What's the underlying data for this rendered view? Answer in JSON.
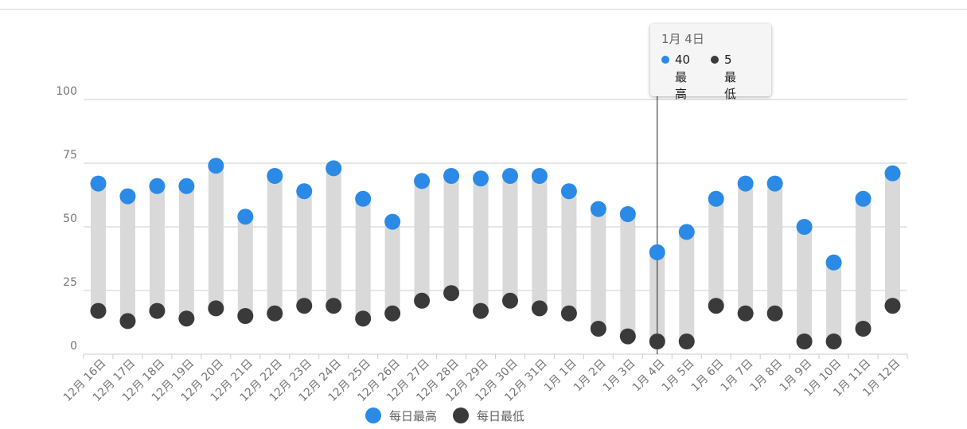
{
  "colors": {
    "high": "#2b8ae6",
    "low": "#3a3a3a",
    "range": "#d9d9d9",
    "grid": "#cccccc",
    "axis_text": "#757575"
  },
  "chart_data": {
    "type": "dumbbell",
    "categories": [
      "12月 16日",
      "12月 17日",
      "12月 18日",
      "12月 19日",
      "12月 20日",
      "12月 21日",
      "12月 22日",
      "12月 23日",
      "12月 24日",
      "12月 25日",
      "12月 26日",
      "12月 27日",
      "12月 28日",
      "12月 29日",
      "12月 30日",
      "12月 31日",
      "1月 1日",
      "1月 2日",
      "1月 3日",
      "1月 4日",
      "1月 5日",
      "1月 6日",
      "1月 7日",
      "1月 8日",
      "1月 9日",
      "1月 10日",
      "1月 11日",
      "1月 12日"
    ],
    "series": [
      {
        "name": "每日最高",
        "values": [
          67,
          62,
          66,
          66,
          74,
          54,
          70,
          64,
          73,
          61,
          52,
          68,
          70,
          69,
          70,
          70,
          64,
          57,
          55,
          40,
          48,
          61,
          67,
          67,
          50,
          36,
          61,
          71
        ]
      },
      {
        "name": "每日最低",
        "values": [
          17,
          13,
          17,
          14,
          18,
          15,
          16,
          19,
          19,
          14,
          16,
          21,
          24,
          17,
          21,
          18,
          16,
          10,
          7,
          5,
          5,
          19,
          16,
          16,
          5,
          5,
          10,
          19
        ]
      }
    ],
    "y_ticks": [
      0,
      25,
      50,
      75,
      100
    ],
    "ylim": [
      0,
      100
    ],
    "grid": true,
    "legend_position": "bottom"
  },
  "legend": {
    "high_label": "每日最高",
    "low_label": "每日最低"
  },
  "tooltip": {
    "title": "1月 4日",
    "high_value": "40",
    "high_label": "最高",
    "low_value": "5",
    "low_label": "最低",
    "index": 19
  }
}
